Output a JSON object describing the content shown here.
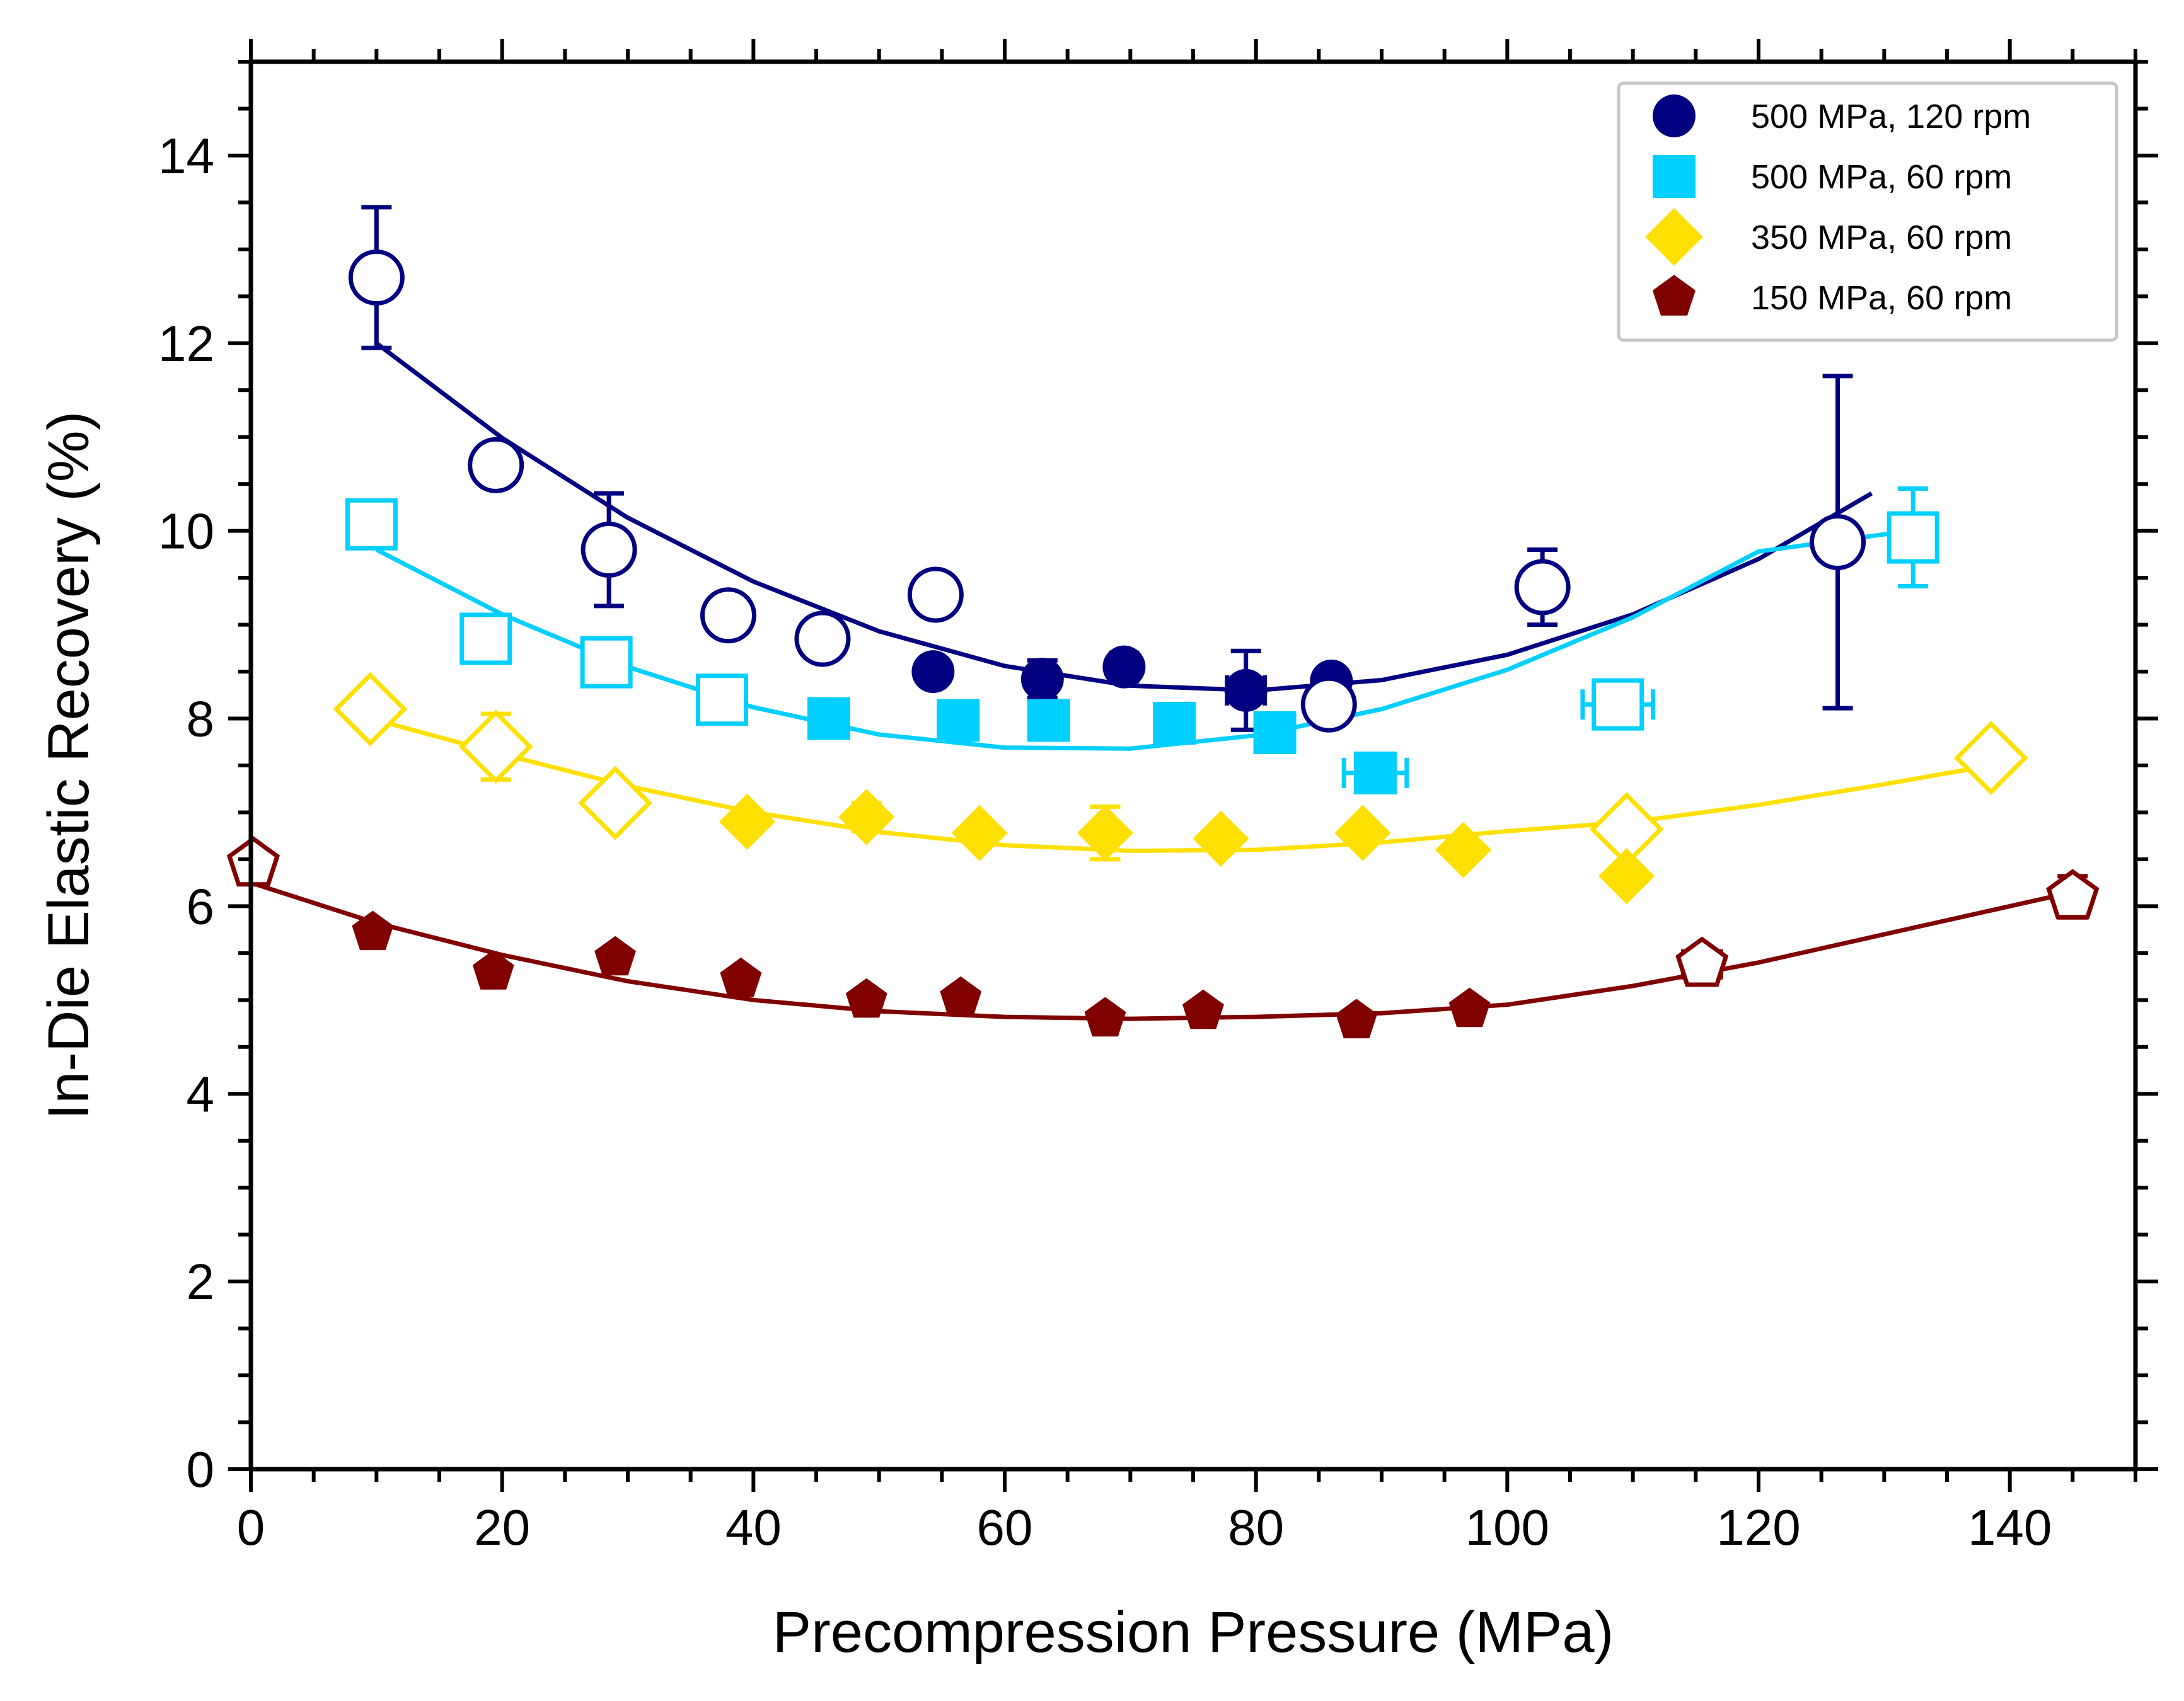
{
  "chart_data": {
    "type": "scatter",
    "title": "",
    "xlabel": "Precompression Pressure (MPa)",
    "ylabel": "In-Die Elastic Recovery (%)",
    "xlim": [
      0,
      150
    ],
    "ylim": [
      0,
      15
    ],
    "xticks": [
      0,
      20,
      40,
      60,
      80,
      100,
      120,
      140
    ],
    "yticks": [
      0,
      2,
      4,
      6,
      8,
      10,
      12,
      14
    ],
    "grid": false,
    "legend_position": "top-right",
    "series": [
      {
        "name": "500 MPa, 120 rpm",
        "marker": "circle",
        "color": "#000080",
        "points": [
          {
            "x": 10,
            "y": 12.7,
            "filled": false,
            "yerr": 0.75
          },
          {
            "x": 19.5,
            "y": 10.7,
            "filled": false
          },
          {
            "x": 28.5,
            "y": 9.8,
            "filled": false,
            "yerr": 0.6
          },
          {
            "x": 38,
            "y": 9.1,
            "filled": false
          },
          {
            "x": 45.5,
            "y": 8.85,
            "filled": false
          },
          {
            "x": 54.5,
            "y": 9.32,
            "filled": false
          },
          {
            "x": 54.3,
            "y": 8.5,
            "filled": true
          },
          {
            "x": 63,
            "y": 8.42,
            "filled": true,
            "yerr": 0.2
          },
          {
            "x": 69.5,
            "y": 8.55,
            "filled": true,
            "yerr": 0.15
          },
          {
            "x": 79.2,
            "y": 8.3,
            "filled": true,
            "yerr": 0.42,
            "xerr": 1.5
          },
          {
            "x": 86,
            "y": 8.4,
            "filled": true
          },
          {
            "x": 85.8,
            "y": 8.15,
            "filled": false
          },
          {
            "x": 102.8,
            "y": 9.4,
            "filled": false,
            "yerr": 0.4,
            "xerr": 1.5
          },
          {
            "x": 126.3,
            "y": 9.88,
            "filled": false,
            "yerr": 1.77
          }
        ],
        "fit": {
          "x": [
            10,
            20,
            30,
            40,
            50,
            60,
            70,
            80,
            90,
            100,
            110,
            120,
            129
          ],
          "y": [
            12.0,
            10.99,
            10.14,
            9.46,
            8.93,
            8.56,
            8.35,
            8.3,
            8.41,
            8.68,
            9.11,
            9.7,
            10.4
          ]
        }
      },
      {
        "name": "500 MPa, 60 rpm",
        "marker": "square",
        "color": "#00CFFF",
        "points": [
          {
            "x": 9.6,
            "y": 10.07,
            "filled": false
          },
          {
            "x": 18.7,
            "y": 8.85,
            "filled": false
          },
          {
            "x": 28.3,
            "y": 8.6,
            "filled": false
          },
          {
            "x": 37.5,
            "y": 8.2,
            "filled": false
          },
          {
            "x": 46,
            "y": 8.0,
            "filled": true
          },
          {
            "x": 56.3,
            "y": 7.98,
            "filled": true
          },
          {
            "x": 63.5,
            "y": 7.98,
            "filled": true
          },
          {
            "x": 73.5,
            "y": 7.95,
            "filled": true
          },
          {
            "x": 81.5,
            "y": 7.85,
            "filled": true
          },
          {
            "x": 89.5,
            "y": 7.42,
            "filled": true,
            "xerr": 2.5
          },
          {
            "x": 108.8,
            "y": 8.15,
            "filled": false,
            "xerr": 2.8
          },
          {
            "x": 132.3,
            "y": 9.93,
            "filled": false,
            "yerr": 0.52
          }
        ],
        "fit": {
          "x": [
            10,
            20,
            30,
            40,
            50,
            60,
            70,
            80,
            90,
            100,
            110,
            120,
            132
          ],
          "y": [
            9.8,
            9.11,
            8.55,
            8.12,
            7.83,
            7.69,
            7.68,
            7.82,
            8.1,
            8.52,
            9.08,
            9.78,
            10.0
          ]
        }
      },
      {
        "name": "350 MPa, 60 rpm",
        "marker": "diamond",
        "color": "#FFE000",
        "points": [
          {
            "x": 9.5,
            "y": 8.1,
            "filled": false
          },
          {
            "x": 19.5,
            "y": 7.7,
            "filled": false,
            "yerr": 0.35
          },
          {
            "x": 29,
            "y": 7.1,
            "filled": false
          },
          {
            "x": 39.5,
            "y": 6.9,
            "filled": true
          },
          {
            "x": 49,
            "y": 6.95,
            "filled": true,
            "yerr": 0.15
          },
          {
            "x": 58,
            "y": 6.78,
            "filled": true
          },
          {
            "x": 68,
            "y": 6.78,
            "filled": true,
            "yerr": 0.28
          },
          {
            "x": 77.2,
            "y": 6.72,
            "filled": true
          },
          {
            "x": 88.5,
            "y": 6.78,
            "filled": true
          },
          {
            "x": 96.5,
            "y": 6.6,
            "filled": true
          },
          {
            "x": 109.5,
            "y": 6.82,
            "filled": false
          },
          {
            "x": 109.5,
            "y": 6.32,
            "filled": true
          },
          {
            "x": 138.5,
            "y": 7.58,
            "filled": false
          }
        ],
        "fit": {
          "x": [
            9.5,
            20,
            30,
            40,
            50,
            60,
            70,
            80,
            90,
            100,
            110,
            120,
            130,
            138.5
          ],
          "y": [
            8.0,
            7.62,
            7.28,
            7.0,
            6.79,
            6.65,
            6.59,
            6.6,
            6.68,
            6.8,
            6.9,
            7.08,
            7.3,
            7.5
          ]
        }
      },
      {
        "name": "150 MPa, 60 rpm",
        "marker": "pentagon",
        "color": "#800000",
        "points": [
          {
            "x": 0.2,
            "y": 6.45,
            "filled": false
          },
          {
            "x": 9.7,
            "y": 5.72,
            "filled": true
          },
          {
            "x": 19.3,
            "y": 5.3,
            "filled": true
          },
          {
            "x": 29,
            "y": 5.45,
            "filled": true
          },
          {
            "x": 39,
            "y": 5.22,
            "filled": true
          },
          {
            "x": 49,
            "y": 5.0,
            "filled": true
          },
          {
            "x": 56.5,
            "y": 5.02,
            "filled": true
          },
          {
            "x": 68,
            "y": 4.8,
            "filled": true
          },
          {
            "x": 75.8,
            "y": 4.88,
            "filled": true
          },
          {
            "x": 88,
            "y": 4.78,
            "filled": true
          },
          {
            "x": 97,
            "y": 4.9,
            "filled": true
          },
          {
            "x": 115.5,
            "y": 5.38,
            "filled": false,
            "xerr": 1.5
          },
          {
            "x": 145,
            "y": 6.1,
            "filled": false,
            "yerr": 0.22
          }
        ],
        "fit": {
          "x": [
            0,
            10,
            20,
            30,
            40,
            50,
            60,
            70,
            80,
            90,
            100,
            110,
            120,
            130,
            145
          ],
          "y": [
            6.25,
            5.82,
            5.48,
            5.2,
            5.0,
            4.88,
            4.82,
            4.8,
            4.82,
            4.86,
            4.95,
            5.15,
            5.4,
            5.7,
            6.15
          ]
        }
      }
    ]
  }
}
